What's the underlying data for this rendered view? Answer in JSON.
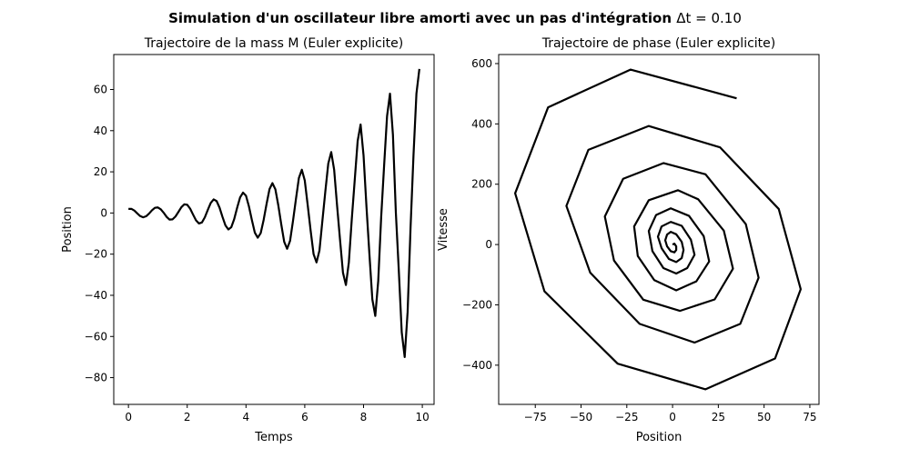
{
  "figure": {
    "suptitle_text": "Simulation d'un oscillateur libre amorti avec un pas d'intégration ",
    "suptitle_math": "Δt = 0.10"
  },
  "chart_data": [
    {
      "type": "line",
      "title": "Trajectoire de la mass M (Euler explicite)",
      "xlabel": "Temps",
      "ylabel": "Position",
      "xlim": [
        -0.5,
        10.4
      ],
      "ylim": [
        -93,
        77
      ],
      "xticks": [
        0,
        2,
        4,
        6,
        8,
        10
      ],
      "yticks": [
        -80,
        -60,
        -40,
        -20,
        0,
        20,
        40,
        60
      ],
      "grid": false,
      "color": "#000000",
      "series": [
        {
          "x": [
            0.0,
            0.1,
            0.2,
            0.3,
            0.4,
            0.5,
            0.6,
            0.7,
            0.8,
            0.9,
            1.0,
            1.1,
            1.2,
            1.3,
            1.4,
            1.5,
            1.6,
            1.7,
            1.8,
            1.9,
            2.0,
            2.1,
            2.2,
            2.3,
            2.4,
            2.5,
            2.6,
            2.7,
            2.8,
            2.9,
            3.0,
            3.1,
            3.2,
            3.3,
            3.4,
            3.5,
            3.6,
            3.7,
            3.8,
            3.9,
            4.0,
            4.1,
            4.2,
            4.3,
            4.4,
            4.5,
            4.6,
            4.7,
            4.8,
            4.9,
            5.0,
            5.1,
            5.2,
            5.3,
            5.4,
            5.5,
            5.6,
            5.7,
            5.8,
            5.9,
            6.0,
            6.1,
            6.2,
            6.3,
            6.4,
            6.5,
            6.6,
            6.7,
            6.8,
            6.9,
            7.0,
            7.1,
            7.2,
            7.3,
            7.4,
            7.5,
            7.6,
            7.7,
            7.8,
            7.9,
            8.0,
            8.1,
            8.2,
            8.3,
            8.4,
            8.5,
            8.6,
            8.7,
            8.8,
            8.9,
            9.0,
            9.1,
            9.2,
            9.3,
            9.4,
            9.5,
            9.6,
            9.7,
            9.8,
            9.9
          ],
          "y": [
            2.0,
            2.0,
            1.2,
            -0.2,
            -1.5,
            -2.1,
            -1.6,
            -0.3,
            1.3,
            2.5,
            2.7,
            1.8,
            0.1,
            -1.9,
            -3.2,
            -3.1,
            -1.7,
            0.5,
            2.8,
            4.2,
            4.0,
            2.1,
            -0.8,
            -3.6,
            -5.1,
            -4.6,
            -2.1,
            1.5,
            4.9,
            6.6,
            5.8,
            2.6,
            -1.9,
            -6.0,
            -8.0,
            -6.9,
            -2.9,
            2.6,
            7.6,
            9.9,
            8.4,
            3.2,
            -3.4,
            -9.5,
            -12.0,
            -9.8,
            -3.4,
            4.4,
            11.6,
            14.5,
            11.5,
            3.7,
            -5.5,
            -14.0,
            -17.4,
            -13.5,
            -3.8,
            6.8,
            17.0,
            21.0,
            15.8,
            3.8,
            -8.6,
            -20.0,
            -24.0,
            -18.2,
            -3.8,
            10.5,
            24.0,
            29.6,
            21.0,
            3.5,
            -13.0,
            -29.0,
            -35.0,
            -24.0,
            -3.0,
            16.0,
            35.0,
            43.0,
            28.0,
            3.0,
            -20.0,
            -42.0,
            -50.0,
            -33.0,
            -2.0,
            23.0,
            47.0,
            58.0,
            38.0,
            0.0,
            -28.0,
            -58.0,
            -70.0,
            -48.0,
            -7.0,
            28.0,
            58.0,
            70.0
          ]
        }
      ]
    },
    {
      "type": "line",
      "title": "Trajectoire de phase (Euler explicite)",
      "xlabel": "Position",
      "ylabel": "Vitesse",
      "xlim": [
        -95,
        80
      ],
      "ylim": [
        -530,
        630
      ],
      "xticks": [
        -75,
        -50,
        -25,
        0,
        25,
        50,
        75
      ],
      "yticks": [
        -400,
        -200,
        0,
        200,
        400,
        600
      ],
      "grid": false,
      "color": "#000000",
      "series": [
        {
          "x": [
            35,
            -23,
            -68,
            -86,
            -70,
            -30,
            18,
            56,
            70,
            58,
            26,
            -13,
            -46,
            -58,
            -45,
            -18,
            12,
            37,
            47,
            40,
            18,
            -5,
            -27,
            -37,
            -32,
            -16,
            4,
            23,
            33,
            28,
            14,
            3,
            -13,
            -21,
            -19,
            -10,
            2,
            13,
            20,
            17,
            9,
            -1,
            -9,
            -13,
            -11,
            -5,
            2,
            8,
            12,
            10,
            5,
            -1,
            -6,
            -8,
            -6,
            -2,
            2,
            5,
            6,
            5,
            2,
            -1,
            -3,
            -4,
            -3,
            -1,
            1,
            2,
            2,
            1,
            0
          ],
          "y": [
            485,
            580,
            455,
            170,
            -155,
            -395,
            -480,
            -378,
            -148,
            118,
            322,
            393,
            314,
            128,
            -93,
            -263,
            -325,
            -263,
            -110,
            68,
            233,
            270,
            218,
            93,
            -53,
            -183,
            -220,
            -182,
            -80,
            46,
            150,
            180,
            147,
            60,
            -38,
            -118,
            -152,
            -122,
            -56,
            28,
            95,
            120,
            98,
            45,
            -22,
            -78,
            -96,
            -78,
            -34,
            16,
            62,
            75,
            60,
            26,
            -12,
            -48,
            -58,
            -45,
            -18,
            9,
            34,
            42,
            33,
            14,
            -6,
            -22,
            -26,
            -18,
            -6,
            3,
            0
          ]
        }
      ]
    }
  ]
}
